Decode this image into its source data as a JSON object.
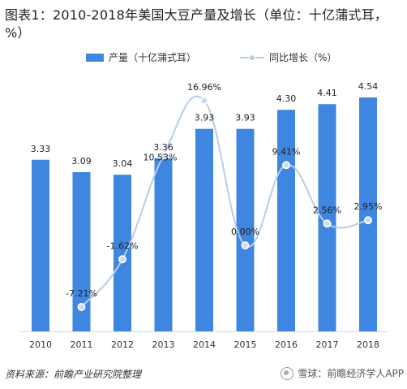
{
  "title": "图表1：2010-2018年美国大豆产量及增长（单位：十亿蒲式耳，%）",
  "legend": {
    "bar_label": "产量（十亿蒲式耳）",
    "line_label": "同比增长（%）"
  },
  "colors": {
    "bar": "#3f86e0",
    "line": "#b7cde8",
    "point": "#cfdcef"
  },
  "chart_data": {
    "type": "bar",
    "categories": [
      "2010",
      "2011",
      "2012",
      "2013",
      "2014",
      "2015",
      "2016",
      "2017",
      "2018"
    ],
    "series": [
      {
        "name": "产量（十亿蒲式耳）",
        "type": "bar",
        "values": [
          3.33,
          3.09,
          3.04,
          3.36,
          3.93,
          3.93,
          4.3,
          4.41,
          4.54
        ],
        "labels": [
          "3.33",
          "3.09",
          "3.04",
          "3.36",
          "3.93",
          "3.93",
          "4.30",
          "4.41",
          "4.54"
        ]
      },
      {
        "name": "同比增长（%）",
        "type": "line",
        "values": [
          null,
          -7.21,
          -1.62,
          10.53,
          16.96,
          0.0,
          9.41,
          2.56,
          2.95
        ],
        "labels": [
          "",
          "-7.21%",
          "-1.62%",
          "10.53%",
          "16.96%",
          "0.00%",
          "9.41%",
          "2.56%",
          "2.95%"
        ]
      }
    ],
    "legend": "top-center",
    "grid": false
  },
  "footer": {
    "source": "资料来源：前瞻产业研究院整理",
    "brand": "雪球：前瞻经济学人APP"
  }
}
